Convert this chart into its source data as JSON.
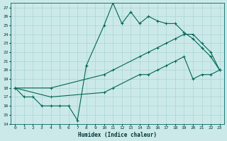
{
  "xlabel": "Humidex (Indice chaleur)",
  "background_color": "#cce9e9",
  "grid_color": "#aad4d4",
  "line_color": "#006655",
  "xlim": [
    -0.5,
    23.5
  ],
  "ylim": [
    14,
    27.5
  ],
  "xticks": [
    0,
    1,
    2,
    3,
    4,
    5,
    6,
    7,
    8,
    9,
    10,
    11,
    12,
    13,
    14,
    15,
    16,
    17,
    18,
    19,
    20,
    21,
    22,
    23
  ],
  "yticks": [
    14,
    15,
    16,
    17,
    18,
    19,
    20,
    21,
    22,
    23,
    24,
    25,
    26,
    27
  ],
  "line1_x": [
    0,
    1,
    2,
    3,
    4,
    5,
    6,
    7,
    8,
    10,
    11,
    12,
    13,
    14,
    15,
    16,
    17,
    18,
    19,
    20,
    21,
    22,
    23
  ],
  "line1_y": [
    18,
    17,
    17,
    16,
    16,
    16,
    16,
    14.4,
    20.5,
    25,
    27.5,
    25.2,
    26.5,
    25.2,
    26,
    25.5,
    25.2,
    25.2,
    24.2,
    23.5,
    22.5,
    21.5,
    20
  ],
  "line2_x": [
    0,
    4,
    10,
    11,
    14,
    15,
    16,
    17,
    18,
    19,
    20,
    21,
    22,
    23
  ],
  "line2_y": [
    18,
    18,
    19.5,
    20,
    21.5,
    22,
    22.5,
    23,
    23.5,
    24,
    24,
    23,
    22,
    20
  ],
  "line3_x": [
    0,
    4,
    10,
    11,
    14,
    15,
    16,
    17,
    18,
    19,
    20,
    21,
    22,
    23
  ],
  "line3_y": [
    18,
    17,
    17.5,
    18,
    19.5,
    19.5,
    20,
    20.5,
    21,
    21.5,
    19,
    19.5,
    19.5,
    20
  ]
}
